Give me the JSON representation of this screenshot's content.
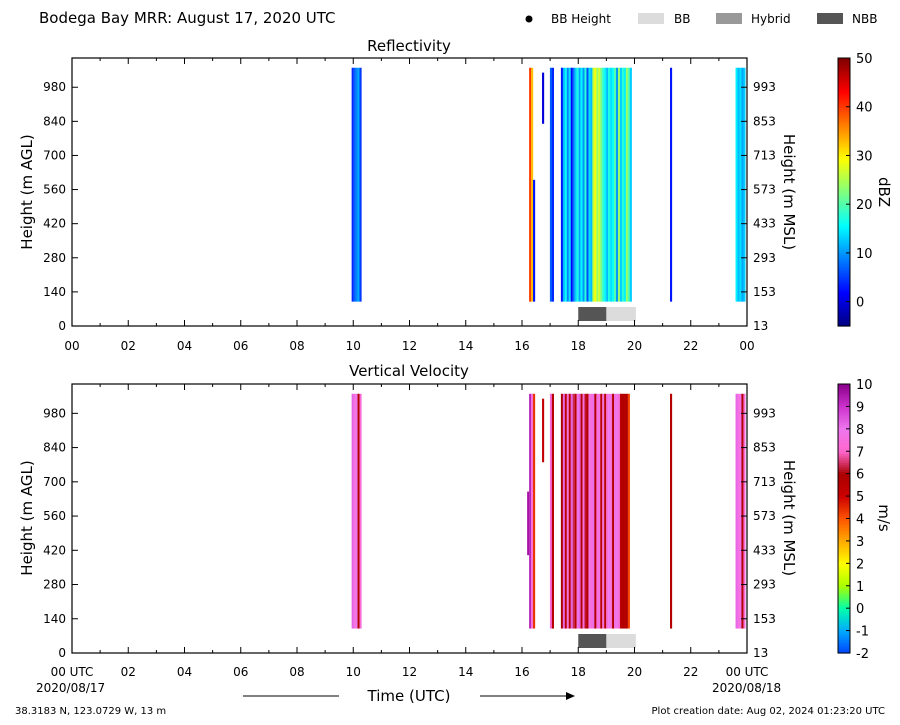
{
  "header": {
    "title": "Bodega Bay MRR:  August 17, 2020 UTC",
    "legend": [
      {
        "label": "BB Height",
        "kind": "dot",
        "color": "#000000"
      },
      {
        "label": "BB",
        "kind": "swatch",
        "color": "#dcdcdc"
      },
      {
        "label": "Hybrid",
        "kind": "swatch",
        "color": "#999999"
      },
      {
        "label": "NBB",
        "kind": "swatch",
        "color": "#555555"
      }
    ]
  },
  "footer": {
    "location": "38.3183 N, 123.0729 W, 13 m",
    "creation": "Plot creation date: Aug 02, 2024 01:23:20 UTC",
    "xlabel": "Time (UTC)",
    "start_date": "2020/08/17",
    "end_date": "2020/08/18"
  },
  "chart_data": [
    {
      "type": "heatmap",
      "title": "Reflectivity",
      "xlabel": "",
      "ylabel": "Height (m AGL)",
      "ylabel_right": "Height (m MSL)",
      "xlim": [
        0,
        24
      ],
      "ylim": [
        0,
        1100
      ],
      "x_ticks": [
        "00",
        "02",
        "04",
        "06",
        "08",
        "10",
        "12",
        "14",
        "16",
        "18",
        "20",
        "22",
        "00"
      ],
      "y_ticks": [
        0,
        140,
        280,
        420,
        560,
        700,
        840,
        980
      ],
      "y_ticks_right": [
        "13",
        "153",
        "293",
        "433",
        "573",
        "713",
        "853",
        "993"
      ],
      "colorbar": {
        "label": "dBZ",
        "min": -5,
        "max": 50,
        "ticks": [
          0,
          10,
          20,
          30,
          40,
          50
        ],
        "colormap": [
          "#00007f",
          "#0000ff",
          "#007fff",
          "#00ffff",
          "#7fff7f",
          "#ffff00",
          "#ff7f00",
          "#ff0000",
          "#7f0000"
        ]
      },
      "bands": [
        {
          "x0": 18.0,
          "x1": 19.0,
          "label": "NBB"
        },
        {
          "x0": 19.0,
          "x1": 20.05,
          "label": "BB"
        }
      ],
      "strips": [
        {
          "x": 9.98,
          "ylo": 100,
          "yhi": 1060,
          "value": 4
        },
        {
          "x": 10.05,
          "ylo": 100,
          "yhi": 1060,
          "value": 7
        },
        {
          "x": 10.12,
          "ylo": 100,
          "yhi": 1060,
          "value": 9
        },
        {
          "x": 10.19,
          "ylo": 100,
          "yhi": 1060,
          "value": 11
        },
        {
          "x": 10.26,
          "ylo": 100,
          "yhi": 1060,
          "value": 5
        },
        {
          "x": 16.29,
          "ylo": 100,
          "yhi": 1060,
          "value": 40
        },
        {
          "x": 16.36,
          "ylo": 100,
          "yhi": 1060,
          "value": 33
        },
        {
          "x": 16.43,
          "ylo": 100,
          "yhi": 600,
          "value": 3
        },
        {
          "x": 16.75,
          "ylo": 830,
          "yhi": 1040,
          "value": 0
        },
        {
          "x": 17.03,
          "ylo": 100,
          "yhi": 1060,
          "value": 7
        },
        {
          "x": 17.1,
          "ylo": 100,
          "yhi": 1060,
          "value": 4
        },
        {
          "x": 17.42,
          "ylo": 100,
          "yhi": 1060,
          "value": 3
        },
        {
          "x": 17.49,
          "ylo": 100,
          "yhi": 1060,
          "value": 12
        },
        {
          "x": 17.56,
          "ylo": 100,
          "yhi": 1060,
          "value": 16
        },
        {
          "x": 17.63,
          "ylo": 100,
          "yhi": 1060,
          "value": 9
        },
        {
          "x": 17.7,
          "ylo": 100,
          "yhi": 1060,
          "value": 14
        },
        {
          "x": 17.77,
          "ylo": 100,
          "yhi": 1060,
          "value": 2
        },
        {
          "x": 17.84,
          "ylo": 100,
          "yhi": 1060,
          "value": 8
        },
        {
          "x": 17.91,
          "ylo": 100,
          "yhi": 1060,
          "value": 13
        },
        {
          "x": 17.98,
          "ylo": 100,
          "yhi": 1060,
          "value": 17
        },
        {
          "x": 18.05,
          "ylo": 100,
          "yhi": 1060,
          "value": 11
        },
        {
          "x": 18.12,
          "ylo": 100,
          "yhi": 1060,
          "value": 15
        },
        {
          "x": 18.19,
          "ylo": 100,
          "yhi": 1060,
          "value": 10
        },
        {
          "x": 18.26,
          "ylo": 100,
          "yhi": 1060,
          "value": 18
        },
        {
          "x": 18.33,
          "ylo": 100,
          "yhi": 1060,
          "value": 6
        },
        {
          "x": 18.4,
          "ylo": 100,
          "yhi": 1060,
          "value": 14
        },
        {
          "x": 18.47,
          "ylo": 100,
          "yhi": 1060,
          "value": 12
        },
        {
          "x": 18.54,
          "ylo": 100,
          "yhi": 1060,
          "value": 26
        },
        {
          "x": 18.61,
          "ylo": 100,
          "yhi": 1060,
          "value": 29
        },
        {
          "x": 18.68,
          "ylo": 100,
          "yhi": 1060,
          "value": 24
        },
        {
          "x": 18.75,
          "ylo": 100,
          "yhi": 1060,
          "value": 27
        },
        {
          "x": 18.82,
          "ylo": 100,
          "yhi": 1060,
          "value": 22
        },
        {
          "x": 18.89,
          "ylo": 100,
          "yhi": 1060,
          "value": 18
        },
        {
          "x": 18.96,
          "ylo": 100,
          "yhi": 1060,
          "value": 15
        },
        {
          "x": 19.03,
          "ylo": 100,
          "yhi": 1060,
          "value": 12
        },
        {
          "x": 19.1,
          "ylo": 100,
          "yhi": 1060,
          "value": 17
        },
        {
          "x": 19.17,
          "ylo": 100,
          "yhi": 1060,
          "value": 14
        },
        {
          "x": 19.24,
          "ylo": 100,
          "yhi": 1060,
          "value": 16
        },
        {
          "x": 19.31,
          "ylo": 100,
          "yhi": 1060,
          "value": 20
        },
        {
          "x": 19.38,
          "ylo": 100,
          "yhi": 1060,
          "value": 10
        },
        {
          "x": 19.45,
          "ylo": 100,
          "yhi": 1060,
          "value": 24
        },
        {
          "x": 19.52,
          "ylo": 100,
          "yhi": 1060,
          "value": 13
        },
        {
          "x": 19.59,
          "ylo": 100,
          "yhi": 1060,
          "value": 18
        },
        {
          "x": 19.66,
          "ylo": 100,
          "yhi": 1060,
          "value": 15
        },
        {
          "x": 19.73,
          "ylo": 100,
          "yhi": 1060,
          "value": 24
        },
        {
          "x": 19.8,
          "ylo": 100,
          "yhi": 1060,
          "value": 20
        },
        {
          "x": 19.87,
          "ylo": 100,
          "yhi": 1060,
          "value": 13
        },
        {
          "x": 21.3,
          "ylo": 100,
          "yhi": 1060,
          "value": 3
        },
        {
          "x": 23.63,
          "ylo": 100,
          "yhi": 1060,
          "value": 15
        },
        {
          "x": 23.7,
          "ylo": 100,
          "yhi": 1060,
          "value": 12
        },
        {
          "x": 23.77,
          "ylo": 100,
          "yhi": 1060,
          "value": 14
        },
        {
          "x": 23.84,
          "ylo": 100,
          "yhi": 1060,
          "value": 11
        },
        {
          "x": 23.91,
          "ylo": 100,
          "yhi": 1060,
          "value": 13
        }
      ]
    },
    {
      "type": "heatmap",
      "title": "Vertical Velocity",
      "xlabel": "Time (UTC)",
      "ylabel": "Height (m AGL)",
      "ylabel_right": "Height (m MSL)",
      "xlim": [
        0,
        24
      ],
      "ylim": [
        0,
        1100
      ],
      "x_ticks": [
        "00 UTC",
        "02",
        "04",
        "06",
        "08",
        "10",
        "12",
        "14",
        "16",
        "18",
        "20",
        "22",
        "00 UTC"
      ],
      "y_ticks": [
        0,
        140,
        280,
        420,
        560,
        700,
        840,
        980
      ],
      "y_ticks_right": [
        "13",
        "153",
        "293",
        "433",
        "573",
        "713",
        "853",
        "993"
      ],
      "colorbar": {
        "label": "m/s",
        "min": -2,
        "max": 10,
        "ticks": [
          -2,
          -1,
          0,
          1,
          2,
          3,
          4,
          5,
          6,
          7,
          8,
          9,
          10
        ],
        "colormap": [
          "#0044ff",
          "#00aaff",
          "#00ffaa",
          "#aaff00",
          "#ffff00",
          "#ffaa00",
          "#ff5500",
          "#cc0000",
          "#aa0000",
          "#ff66cc",
          "#ee77ee",
          "#cc33cc",
          "#8b008b"
        ]
      },
      "bands": [
        {
          "x0": 18.0,
          "x1": 19.0,
          "label": "NBB"
        },
        {
          "x0": 19.0,
          "x1": 20.05,
          "label": "BB"
        }
      ],
      "strips": [
        {
          "x": 9.98,
          "ylo": 100,
          "yhi": 1060,
          "value": 8.3
        },
        {
          "x": 10.05,
          "ylo": 100,
          "yhi": 1060,
          "value": 7.6
        },
        {
          "x": 10.12,
          "ylo": 100,
          "yhi": 1060,
          "value": 8.0
        },
        {
          "x": 10.19,
          "ylo": 100,
          "yhi": 1060,
          "value": 5.8
        },
        {
          "x": 10.26,
          "ylo": 100,
          "yhi": 1060,
          "value": 7.4
        },
        {
          "x": 16.22,
          "ylo": 400,
          "yhi": 660,
          "value": 9.6
        },
        {
          "x": 16.29,
          "ylo": 100,
          "yhi": 1060,
          "value": 9.3
        },
        {
          "x": 16.36,
          "ylo": 100,
          "yhi": 1060,
          "value": 7.5
        },
        {
          "x": 16.43,
          "ylo": 100,
          "yhi": 1060,
          "value": 4.4
        },
        {
          "x": 16.75,
          "ylo": 780,
          "yhi": 1040,
          "value": 5.3
        },
        {
          "x": 17.03,
          "ylo": 100,
          "yhi": 1060,
          "value": 7.4
        },
        {
          "x": 17.1,
          "ylo": 100,
          "yhi": 1060,
          "value": 5.6
        },
        {
          "x": 17.42,
          "ylo": 100,
          "yhi": 1060,
          "value": 5.9
        },
        {
          "x": 17.49,
          "ylo": 100,
          "yhi": 1060,
          "value": 8.2
        },
        {
          "x": 17.56,
          "ylo": 100,
          "yhi": 1060,
          "value": 5.6
        },
        {
          "x": 17.63,
          "ylo": 100,
          "yhi": 1060,
          "value": 7.6
        },
        {
          "x": 17.7,
          "ylo": 100,
          "yhi": 1060,
          "value": 5.5
        },
        {
          "x": 17.77,
          "ylo": 100,
          "yhi": 1060,
          "value": 8.3
        },
        {
          "x": 17.84,
          "ylo": 100,
          "yhi": 1060,
          "value": 6.4
        },
        {
          "x": 17.91,
          "ylo": 100,
          "yhi": 1060,
          "value": 5.6
        },
        {
          "x": 17.98,
          "ylo": 100,
          "yhi": 1060,
          "value": 7.8
        },
        {
          "x": 18.05,
          "ylo": 100,
          "yhi": 1060,
          "value": 8.3
        },
        {
          "x": 18.12,
          "ylo": 100,
          "yhi": 1060,
          "value": 5.7
        },
        {
          "x": 18.19,
          "ylo": 100,
          "yhi": 1060,
          "value": 7.5
        },
        {
          "x": 18.26,
          "ylo": 100,
          "yhi": 1060,
          "value": 6.2
        },
        {
          "x": 18.33,
          "ylo": 100,
          "yhi": 1060,
          "value": 5.6
        },
        {
          "x": 18.4,
          "ylo": 100,
          "yhi": 1060,
          "value": 7.8
        },
        {
          "x": 18.47,
          "ylo": 100,
          "yhi": 1060,
          "value": 7.5
        },
        {
          "x": 18.54,
          "ylo": 100,
          "yhi": 1060,
          "value": 8.1
        },
        {
          "x": 18.61,
          "ylo": 100,
          "yhi": 1060,
          "value": 5.8
        },
        {
          "x": 18.68,
          "ylo": 100,
          "yhi": 1060,
          "value": 7.4
        },
        {
          "x": 18.75,
          "ylo": 100,
          "yhi": 1060,
          "value": 7.7
        },
        {
          "x": 18.82,
          "ylo": 100,
          "yhi": 1060,
          "value": 5.6
        },
        {
          "x": 18.89,
          "ylo": 100,
          "yhi": 1060,
          "value": 7.6
        },
        {
          "x": 18.96,
          "ylo": 100,
          "yhi": 1060,
          "value": 5.7
        },
        {
          "x": 19.03,
          "ylo": 100,
          "yhi": 1060,
          "value": 7.4
        },
        {
          "x": 19.1,
          "ylo": 100,
          "yhi": 1060,
          "value": 8.0
        },
        {
          "x": 19.17,
          "ylo": 100,
          "yhi": 1060,
          "value": 7.5
        },
        {
          "x": 19.24,
          "ylo": 100,
          "yhi": 1060,
          "value": 5.8
        },
        {
          "x": 19.31,
          "ylo": 100,
          "yhi": 1060,
          "value": 7.7
        },
        {
          "x": 19.38,
          "ylo": 100,
          "yhi": 1060,
          "value": 7.9
        },
        {
          "x": 19.45,
          "ylo": 100,
          "yhi": 1060,
          "value": 7.4
        },
        {
          "x": 19.52,
          "ylo": 100,
          "yhi": 1060,
          "value": 5.6
        },
        {
          "x": 19.59,
          "ylo": 100,
          "yhi": 1060,
          "value": 5.8
        },
        {
          "x": 19.66,
          "ylo": 100,
          "yhi": 1060,
          "value": 5.6
        },
        {
          "x": 19.73,
          "ylo": 100,
          "yhi": 1060,
          "value": 5.9
        },
        {
          "x": 19.8,
          "ylo": 100,
          "yhi": 1060,
          "value": 4.2
        },
        {
          "x": 21.3,
          "ylo": 100,
          "yhi": 1060,
          "value": 5.7
        },
        {
          "x": 23.63,
          "ylo": 100,
          "yhi": 1060,
          "value": 8.2
        },
        {
          "x": 23.7,
          "ylo": 100,
          "yhi": 1060,
          "value": 7.6
        },
        {
          "x": 23.77,
          "ylo": 100,
          "yhi": 1060,
          "value": 8.0
        },
        {
          "x": 23.84,
          "ylo": 100,
          "yhi": 1060,
          "value": 5.7
        },
        {
          "x": 23.91,
          "ylo": 100,
          "yhi": 1060,
          "value": 7.5
        }
      ]
    }
  ]
}
